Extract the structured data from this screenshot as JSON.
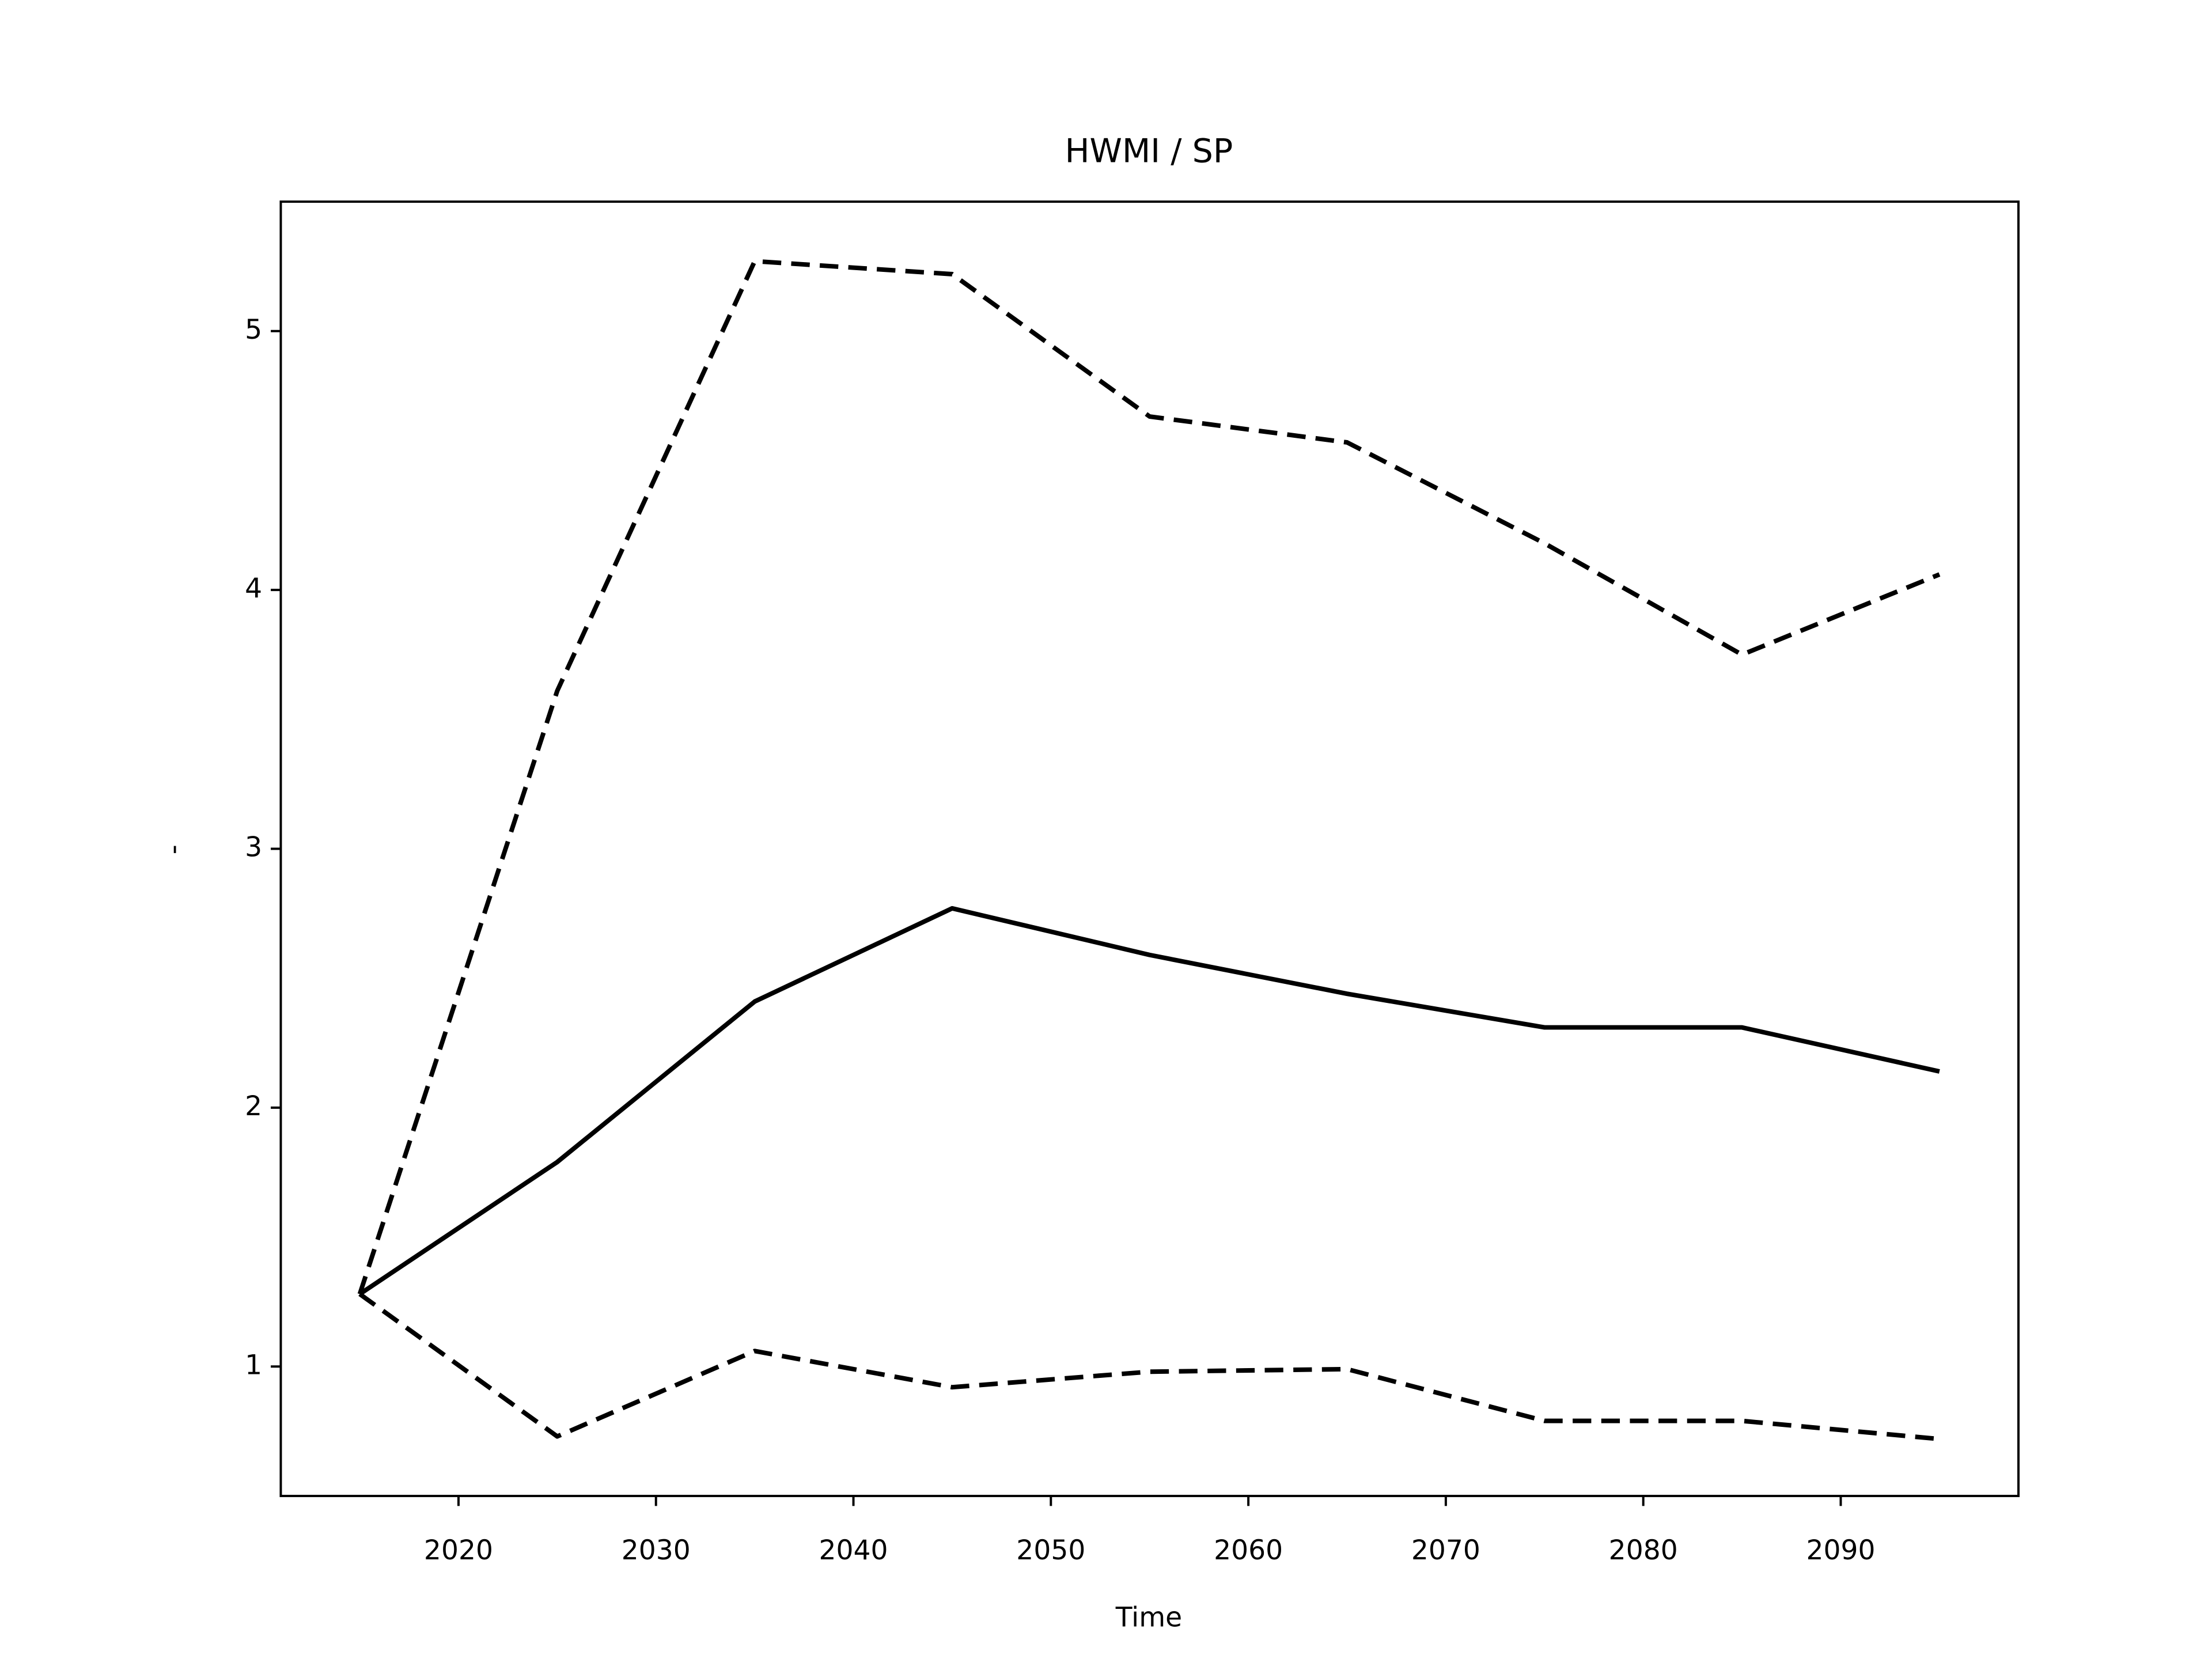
{
  "chart_data": {
    "type": "line",
    "title": "HWMI / SP",
    "xlabel": "Time",
    "ylabel": "-",
    "x": [
      2015,
      2025,
      2035,
      2045,
      2055,
      2065,
      2075,
      2085,
      2095
    ],
    "series": [
      {
        "color": "#000000",
        "linestyle": "solid",
        "values": [
          1.28,
          1.79,
          2.41,
          2.77,
          2.59,
          2.44,
          2.31,
          2.31,
          2.14
        ]
      },
      {
        "color": "#000000",
        "linestyle": "dashed",
        "values": [
          1.28,
          3.61,
          5.27,
          5.22,
          4.67,
          4.57,
          4.18,
          3.75,
          4.06
        ]
      },
      {
        "color": "#000000",
        "linestyle": "dashed",
        "values": [
          1.28,
          0.73,
          1.06,
          0.92,
          0.98,
          0.99,
          0.79,
          0.79,
          0.72
        ]
      }
    ],
    "xlim": [
      2011,
      2099
    ],
    "xticks": [
      2020,
      2030,
      2040,
      2050,
      2060,
      2070,
      2080,
      2090
    ],
    "ylim": [
      0.5,
      5.5
    ],
    "yticks": [
      1,
      2,
      3,
      4,
      5
    ],
    "grid": false
  }
}
